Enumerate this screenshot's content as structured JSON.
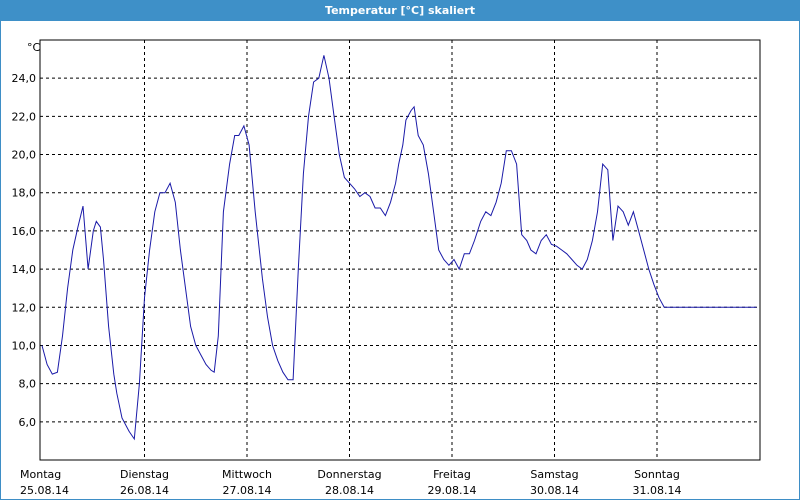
{
  "window": {
    "title": "Temperatur [°C] skaliert"
  },
  "colors": {
    "titlebar": "#3e90c8",
    "line": "#1a1aa8",
    "grid": "#000000"
  },
  "chart_data": {
    "type": "line",
    "title": "Temperatur [°C] skaliert",
    "ylabel": "°C",
    "xlabel": "",
    "ylim": [
      4.0,
      26.0
    ],
    "yticks": [
      "6,0",
      "8,0",
      "10,0",
      "12,0",
      "14,0",
      "16,0",
      "18,0",
      "20,0",
      "22,0",
      "24,0"
    ],
    "ytick_values": [
      6,
      8,
      10,
      12,
      14,
      16,
      18,
      20,
      22,
      24
    ],
    "xlim": [
      0,
      7
    ],
    "days": [
      {
        "weekday": "Montag",
        "date": "25.08.14"
      },
      {
        "weekday": "Dienstag",
        "date": "26.08.14"
      },
      {
        "weekday": "Mittwoch",
        "date": "27.08.14"
      },
      {
        "weekday": "Donnerstag",
        "date": "28.08.14"
      },
      {
        "weekday": "Freitag",
        "date": "29.08.14"
      },
      {
        "weekday": "Samstag",
        "date": "30.08.14"
      },
      {
        "weekday": "Sonntag",
        "date": "31.08.14"
      }
    ],
    "grid": true,
    "series": [
      {
        "x": [
          0,
          0.05,
          0.1,
          0.15,
          0.2,
          0.25,
          0.3,
          0.35,
          0.4,
          0.45,
          0.5,
          0.53,
          0.57,
          0.6,
          0.65,
          0.7,
          0.73,
          0.78,
          0.85,
          0.9,
          0.95,
          1.0,
          1.05,
          1.1,
          1.15,
          1.2,
          1.25,
          1.3,
          1.35,
          1.4,
          1.45,
          1.5,
          1.55,
          1.6,
          1.65,
          1.68,
          1.72,
          1.77,
          1.83,
          1.88,
          1.92,
          1.97,
          2.02,
          2.08,
          2.15,
          2.2,
          2.25,
          2.3,
          2.35,
          2.4,
          2.45,
          2.5,
          2.55,
          2.6,
          2.65,
          2.7,
          2.75,
          2.8,
          2.85,
          2.9,
          2.95,
          3.0,
          3.05,
          3.1,
          3.15,
          3.2,
          3.25,
          3.3,
          3.35,
          3.4,
          3.45,
          3.48,
          3.52,
          3.55,
          3.6,
          3.63,
          3.67,
          3.72,
          3.77,
          3.82,
          3.87,
          3.92,
          3.97,
          4.02,
          4.07,
          4.12,
          4.17,
          4.22,
          4.28,
          4.33,
          4.38,
          4.43,
          4.48,
          4.53,
          4.58,
          4.63,
          4.68,
          4.73,
          4.77,
          4.82,
          4.87,
          4.92,
          4.97,
          5.02,
          5.07,
          5.12,
          5.17,
          5.22,
          5.27,
          5.32,
          5.37,
          5.42,
          5.47,
          5.52,
          5.57,
          5.62,
          5.67,
          5.72,
          5.77,
          5.82,
          5.87,
          5.92,
          5.97,
          6.02,
          6.07,
          6.12,
          6.17,
          6.22,
          6.27,
          6.32,
          6.37,
          6.42,
          6.47,
          6.52,
          6.57,
          6.62,
          6.67,
          6.72,
          6.77,
          6.82,
          6.87,
          6.92,
          6.97,
          7.0
        ],
        "y": [
          10.0,
          9.0,
          8.5,
          8.6,
          10.5,
          13.0,
          15.0,
          16.2,
          17.3,
          14.0,
          16.0,
          16.5,
          16.2,
          14.5,
          11.0,
          8.5,
          7.5,
          6.2,
          5.5,
          5.1,
          8.0,
          12.5,
          15.0,
          17.0,
          18.0,
          18.0,
          18.5,
          17.5,
          15.0,
          13.0,
          11.0,
          10.0,
          9.5,
          9.0,
          8.7,
          8.6,
          10.5,
          17.0,
          19.5,
          21.0,
          21.0,
          21.5,
          20.5,
          17.0,
          13.5,
          11.5,
          10.0,
          9.2,
          8.6,
          8.2,
          8.2,
          14.0,
          19.0,
          22.0,
          23.8,
          24.0,
          25.2,
          24.0,
          22.0,
          20.0,
          18.8,
          18.5,
          18.2,
          17.8,
          18.0,
          17.8,
          17.2,
          17.2,
          16.8,
          17.5,
          18.5,
          19.5,
          20.5,
          21.8,
          22.3,
          22.5,
          21.0,
          20.5,
          19.0,
          17.0,
          15.0,
          14.5,
          14.2,
          14.5,
          14.0,
          14.8,
          14.8,
          15.5,
          16.5,
          17.0,
          16.8,
          17.5,
          18.5,
          20.2,
          20.2,
          19.5,
          15.8,
          15.5,
          15.0,
          14.8,
          15.5,
          15.8,
          15.3,
          15.2,
          15.0,
          14.8,
          14.5,
          14.2,
          14.0,
          14.5,
          15.5,
          17.0,
          19.5,
          19.2,
          15.5,
          17.3,
          17.0,
          16.3,
          17.0,
          16.0,
          15.0,
          14.0,
          13.2,
          12.5,
          12.0,
          12.0,
          12.0,
          12.0,
          12.0,
          12.0,
          12.0,
          12.0,
          12.0,
          12.0,
          12.0,
          12.0,
          12.0,
          12.0,
          12.0,
          12.0,
          12.0,
          12.0,
          12.0,
          12.0
        ]
      }
    ]
  }
}
